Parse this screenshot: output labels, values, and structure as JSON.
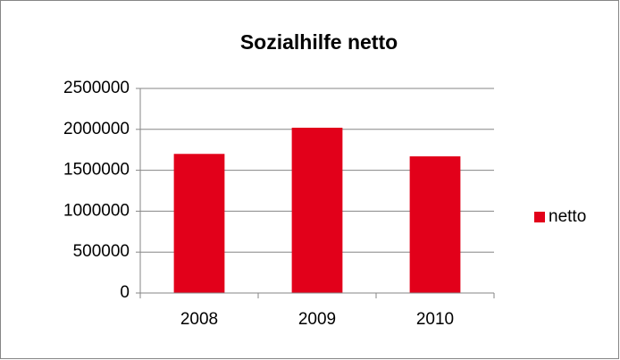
{
  "chart_data": {
    "type": "bar",
    "title": "Sozialhilfe netto",
    "categories": [
      "2008",
      "2009",
      "2010"
    ],
    "series": [
      {
        "name": "netto",
        "color": "#e2001a",
        "values": [
          1700000,
          2020000,
          1670000
        ]
      }
    ],
    "ylim": [
      0,
      2500000
    ],
    "yticks": [
      0,
      500000,
      1000000,
      1500000,
      2000000,
      2500000
    ],
    "grid": true,
    "legend": "right"
  }
}
